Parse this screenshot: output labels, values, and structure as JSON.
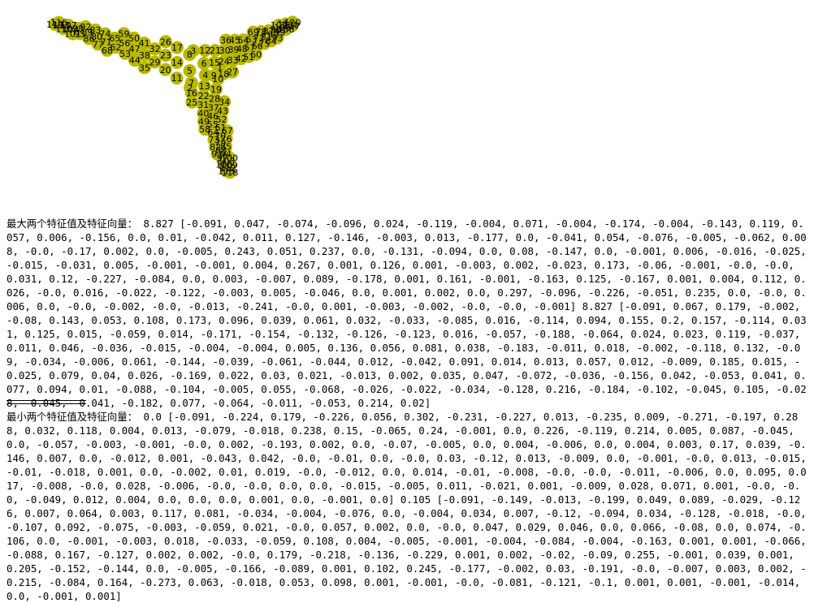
{
  "graph": {
    "node_color": "#b9b900",
    "label_color": "#000000",
    "labels": [
      "1",
      "2",
      "3",
      "4",
      "5",
      "6",
      "7",
      "8",
      "9",
      "10",
      "11",
      "12",
      "13",
      "14",
      "15",
      "16",
      "17",
      "18",
      "19",
      "20",
      "21",
      "22",
      "23",
      "24",
      "25",
      "26",
      "27",
      "28",
      "29",
      "30",
      "31",
      "32",
      "33",
      "34",
      "35",
      "36",
      "37",
      "38",
      "39",
      "40",
      "41",
      "42",
      "43",
      "44",
      "45",
      "46",
      "47",
      "48",
      "49",
      "50",
      "51",
      "52",
      "53",
      "54",
      "55",
      "56",
      "57",
      "58",
      "59",
      "60",
      "61",
      "62",
      "63",
      "64",
      "65",
      "66",
      "67",
      "68",
      "69",
      "70",
      "71",
      "72",
      "73",
      "74",
      "75",
      "76",
      "77",
      "78",
      "79",
      "80",
      "81",
      "82",
      "83",
      "84",
      "85",
      "86",
      "87",
      "88",
      "89",
      "90",
      "91",
      "92",
      "93",
      "94",
      "95",
      "96",
      "97",
      "98",
      "99",
      "100",
      "101",
      "102",
      "103",
      "104",
      "105",
      "106",
      "107",
      "108",
      "109",
      "110",
      "111",
      "112",
      "113",
      "114",
      "115",
      "116",
      "117",
      "118",
      "119",
      "120"
    ]
  },
  "console": {
    "max_output": "最大两个特征值及特征向量： 8.827 [-0.091, 0.047, -0.074, -0.096, 0.024, -0.119, -0.004, 0.071, -0.004, -0.174, -0.004, -0.143, 0.119, 0.057, 0.006, -0.156, 0.0, 0.01, -0.042, 0.011, 0.127, -0.146, -0.003, 0.013, -0.177, 0.0, -0.041, 0.054, -0.076, -0.005, -0.062, 0.008, -0.0, -0.17, 0.002, 0.0, -0.005, 0.243, 0.051, 0.237, 0.0, -0.131, -0.094, 0.0, 0.08, -0.147, 0.0, -0.001, 0.006, -0.016, -0.025, -0.015, -0.031, 0.005, -0.001, -0.001, 0.004, 0.267, 0.001, 0.126, 0.001, -0.003, 0.002, -0.023, 0.173, -0.06, -0.001, -0.0, -0.0, 0.031, 0.12, -0.227, -0.084, 0.0, 0.003, -0.007, 0.089, -0.178, 0.001, 0.161, -0.001, -0.163, 0.125, -0.167, 0.001, 0.004, 0.112, 0.026, -0.0, 0.016, -0.022, -0.122, -0.003, 0.005, -0.046, 0.0, 0.001, 0.002, 0.0, 0.297, -0.096, -0.226, -0.051, 0.235, 0.0, -0.0, 0.006, 0.0, -0.0, -0.002, -0.0, -0.013, -0.241, -0.0, 0.001, -0.003, -0.002, -0.0, -0.0, -0.001] 8.827 [-0.091, 0.067, 0.179, -0.002, -0.08, 0.143, 0.053, 0.108, 0.173, 0.096, 0.039, 0.061, 0.032, -0.033, -0.085, 0.016, -0.114, 0.094, 0.155, 0.2, 0.157, -0.114, 0.031, 0.125, 0.015, -0.059, 0.014, -0.171, -0.154, -0.132, -0.126, -0.123, 0.016, -0.057, -0.188, -0.064, 0.024, 0.023, 0.119, -0.037, 0.011, 0.046, -0.036, -0.015, -0.004, -0.004, 0.005, 0.136, 0.056, 0.081, 0.038, -0.183, -0.011, 0.018, -0.002, -0.118, 0.132, -0.09, -0.034, -0.006, 0.061, -0.144, -0.039, -0.061, -0.044, 0.012, -0.042, 0.091, 0.014, 0.013, 0.057, 0.012, -0.009, 0.185, 0.015, -0.025, 0.079, 0.04, 0.026, -0.169, 0.022, 0.03, 0.021, -0.013, 0.002, 0.035, 0.047, -0.072, -0.036, -0.156, 0.042, -0.053, 0.041, 0.077, 0.094, 0.01, -0.088, -0.104, -0.005, 0.055, -0.068, -0.026, -0.022, -0.034, -0.128, 0.216, -0.184, -0.102, -0.045, 0.105, -0.028, -0.045, -0.041, -0.182, 0.077, -0.064, -0.011, -0.053, 0.214, 0.02]",
    "min_output": "最小两个特征值及特征向量： 0.0 [-0.091, -0.224, 0.179, -0.226, 0.056, 0.302, -0.231, -0.227, 0.013, -0.235, 0.009, -0.271, -0.197, 0.288, 0.032, 0.118, 0.004, 0.013, -0.079, -0.018, 0.238, 0.15, -0.065, 0.24, -0.001, 0.0, 0.226, -0.119, 0.214, 0.005, 0.087, -0.045, 0.0, -0.057, -0.003, -0.001, -0.0, 0.002, -0.193, 0.002, 0.0, -0.07, -0.005, 0.0, 0.004, -0.006, 0.0, 0.004, 0.003, 0.17, 0.039, -0.146, 0.007, 0.0, -0.012, 0.001, -0.043, 0.042, -0.0, -0.01, 0.0, -0.0, 0.03, -0.12, 0.013, -0.009, 0.0, -0.001, -0.0, 0.013, -0.015, -0.01, -0.018, 0.001, 0.0, -0.002, 0.01, 0.019, -0.0, -0.012, 0.0, 0.014, -0.01, -0.008, -0.0, -0.0, -0.011, -0.006, 0.0, 0.095, 0.017, -0.008, -0.0, 0.028, -0.006, -0.0, -0.0, 0.0, 0.0, -0.015, -0.005, 0.011, -0.021, 0.001, -0.009, 0.028, 0.071, 0.001, -0.0, -0.0, -0.049, 0.012, 0.004, 0.0, 0.0, 0.0, 0.001, 0.0, -0.001, 0.0] 0.105 [-0.091, -0.149, -0.013, -0.199, 0.049, 0.089, -0.029, -0.126, 0.007, 0.064, 0.003, 0.117, 0.081, -0.034, -0.004, -0.076, 0.0, -0.004, 0.034, 0.007, -0.12, -0.094, 0.034, -0.128, -0.018, -0.0, -0.107, 0.092, -0.075, -0.003, -0.059, 0.021, -0.0, 0.057, 0.002, 0.0, -0.0, 0.047, 0.029, 0.046, 0.0, 0.066, -0.08, 0.0, 0.074, -0.106, 0.0, -0.001, -0.003, 0.018, -0.033, -0.059, 0.108, 0.004, -0.005, -0.001, -0.004, -0.084, -0.004, -0.163, 0.001, 0.001, -0.066, -0.088, 0.167, -0.127, 0.002, 0.002, -0.0, 0.179, -0.218, -0.136, -0.229, 0.001, 0.002, -0.02, -0.09, 0.255, -0.001, 0.039, 0.001, 0.205, -0.152, -0.144, 0.0, -0.005, -0.166, -0.089, 0.001, 0.102, 0.245, -0.177, -0.002, 0.03, -0.191, -0.0, -0.007, 0.003, 0.002, -0.215, -0.084, 0.164, -0.273, 0.063, -0.018, 0.053, 0.098, 0.001, -0.001, -0.0, -0.081, -0.121, -0.1, 0.001, 0.001, -0.001, -0.014, 0.0, -0.001, 0.001]"
  }
}
